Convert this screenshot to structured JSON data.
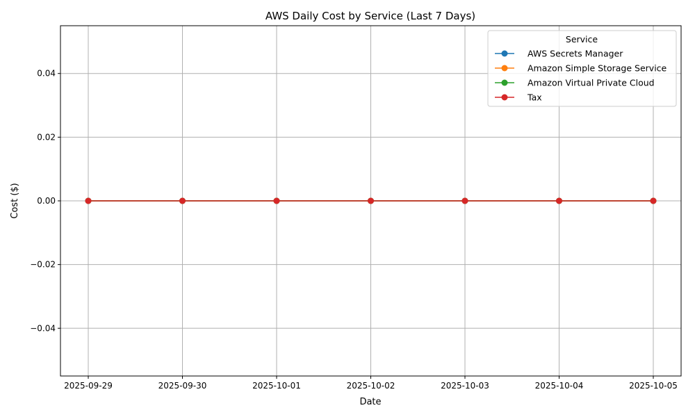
{
  "chart_data": {
    "type": "line",
    "title": "AWS Daily Cost by Service (Last 7 Days)",
    "xlabel": "Date",
    "ylabel": "Cost ($)",
    "x": [
      "2025-09-29",
      "2025-09-30",
      "2025-10-01",
      "2025-10-02",
      "2025-10-03",
      "2025-10-04",
      "2025-10-05"
    ],
    "ylim": [
      -0.055,
      0.055
    ],
    "yticks": [
      -0.04,
      -0.02,
      0.0,
      0.02,
      0.04
    ],
    "ytick_labels": [
      "−0.04",
      "−0.02",
      "0.00",
      "0.02",
      "0.04"
    ],
    "grid": true,
    "legend": {
      "title": "Service",
      "placement": "top-right"
    },
    "series": [
      {
        "name": "AWS Secrets Manager",
        "color": "#1f77b4",
        "values": [
          0,
          0,
          0,
          0,
          0,
          0,
          0
        ]
      },
      {
        "name": "Amazon Simple Storage Service",
        "color": "#ff7f0e",
        "values": [
          0,
          0,
          0,
          0,
          0,
          0,
          0
        ]
      },
      {
        "name": "Amazon Virtual Private Cloud",
        "color": "#2ca02c",
        "values": [
          0,
          0,
          0,
          0,
          0,
          0,
          0
        ]
      },
      {
        "name": "Tax",
        "color": "#d62728",
        "values": [
          0,
          0,
          0,
          0,
          0,
          0,
          0
        ]
      }
    ]
  }
}
